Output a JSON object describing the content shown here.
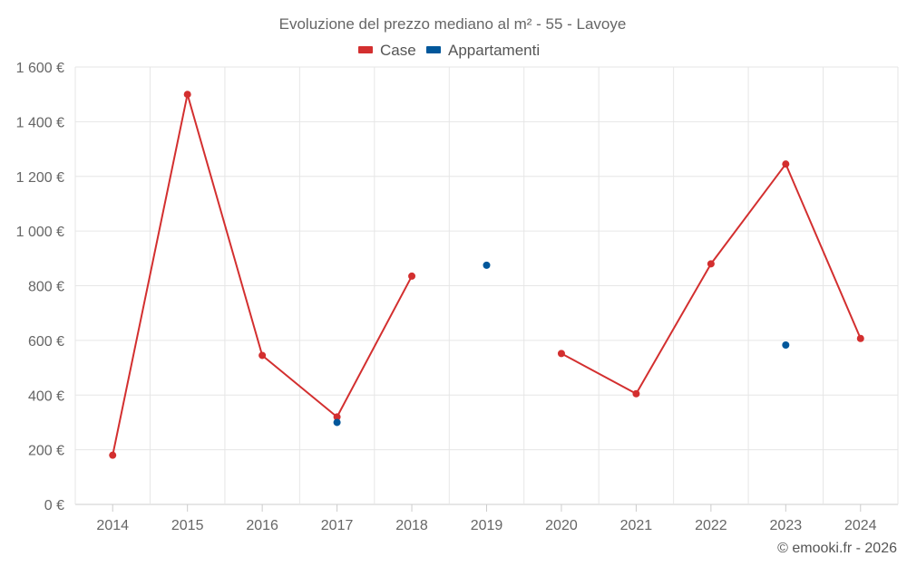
{
  "chart_data": {
    "type": "line",
    "title": "Evoluzione del prezzo mediano al m² - 55 - Lavoye",
    "categories": [
      "2014",
      "2015",
      "2016",
      "2017",
      "2018",
      "2019",
      "2020",
      "2021",
      "2022",
      "2023",
      "2024"
    ],
    "ylim": [
      0,
      1600
    ],
    "yticks": [
      0,
      200,
      400,
      600,
      800,
      1000,
      1200,
      1400,
      1600
    ],
    "ytick_labels": [
      "0 €",
      "200 €",
      "400 €",
      "600 €",
      "800 €",
      "1 000 €",
      "1 200 €",
      "1 400 €",
      "1 600 €"
    ],
    "grid": true,
    "legend_position": "top-center",
    "series": [
      {
        "name": "Case",
        "color": "#d32f2f",
        "values": [
          180,
          1500,
          545,
          320,
          835,
          null,
          552,
          405,
          880,
          1245,
          607
        ]
      },
      {
        "name": "Appartamenti",
        "color": "#01579b",
        "values": [
          null,
          null,
          null,
          300,
          null,
          875,
          null,
          null,
          null,
          583,
          null
        ]
      }
    ]
  },
  "credit": "© emooki.fr - 2026"
}
